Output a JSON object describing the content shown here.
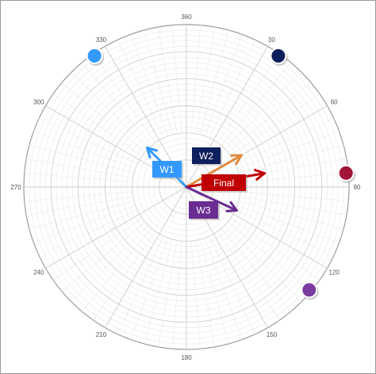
{
  "chart_data": {
    "type": "polar",
    "angle_tick_labels": [
      "360",
      "30",
      "60",
      "90",
      "120",
      "150",
      "180",
      "210",
      "240",
      "270",
      "300",
      "330"
    ],
    "vectors": [
      {
        "label": "W1",
        "direction_deg": 315,
        "color": "#3399ff"
      },
      {
        "label": "W2",
        "direction_deg": 60,
        "color": "#e08a3c"
      },
      {
        "label": "Final",
        "direction_deg": 80,
        "color": "#c00000"
      },
      {
        "label": "W3",
        "direction_deg": 115,
        "color": "#6a2c91"
      }
    ],
    "label_colors": {
      "W1": "#3399ff",
      "W2": "#0d1f5c",
      "Final": "#c00000",
      "W3": "#6a2c91"
    },
    "markers": [
      {
        "angle_deg": 325,
        "color": "#3399ff"
      },
      {
        "angle_deg": 35,
        "color": "#0d1f5c"
      },
      {
        "angle_deg": 85,
        "color": "#a31538"
      },
      {
        "angle_deg": 130,
        "color": "#7b3aa0"
      }
    ]
  }
}
